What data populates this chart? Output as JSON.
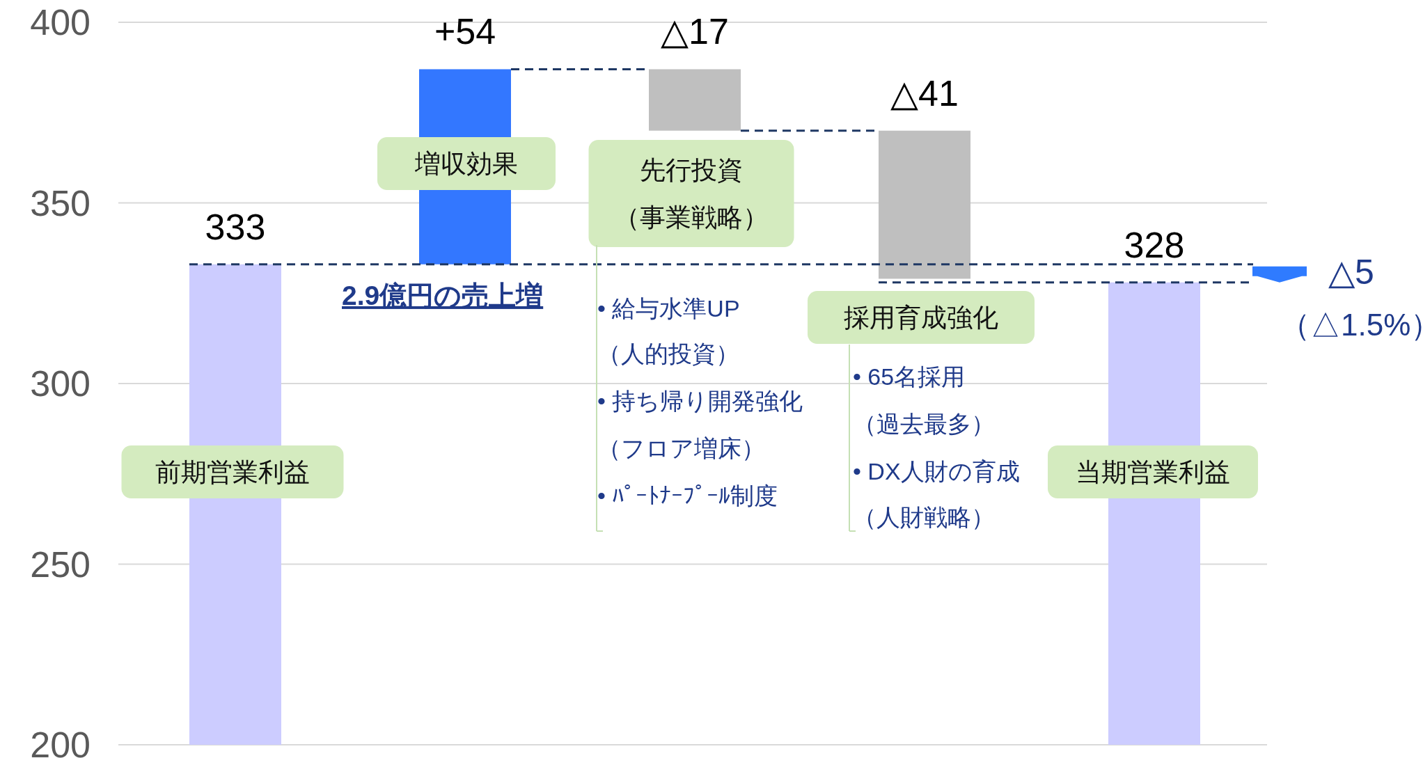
{
  "chart_data": {
    "type": "bar",
    "categories": [
      "前期営業利益",
      "増収効果",
      "先行投資（事業戦略）",
      "採用育成強化",
      "当期営業利益"
    ],
    "values": [
      333,
      54,
      -17,
      -41,
      328
    ],
    "base": [
      null,
      333,
      387,
      370,
      null
    ],
    "colors": [
      "#ccccff",
      "#3377ff",
      "#bfbfbf",
      "#bfbfbf",
      "#ccccff"
    ],
    "value_labels": [
      "333",
      "+54",
      "△17",
      "△41",
      "328"
    ],
    "ref_lines": [
      {
        "axis": "y",
        "value": 333,
        "color": "#1f3864",
        "line_style": "dashed"
      },
      {
        "axis": "y",
        "value": 328,
        "color": "#1f3864",
        "line_style": "dashed"
      }
    ],
    "ylim": [
      200,
      400
    ],
    "yticks": [
      200,
      250,
      300,
      350,
      400
    ],
    "grid": "y",
    "annotations": [
      "2.9億円の売上増",
      "• 給与水準UP",
      "（人的投資）",
      "• 持ち帰り開発強化",
      "（フロア増床）",
      "• ﾊﾟｰﾄﾅｰﾌﾟｰﾙ制度",
      "• 65名採用",
      "（過去最多）",
      "• DX人財の育成",
      "（人財戦略）",
      "△5",
      "（△1.5%）"
    ]
  }
}
